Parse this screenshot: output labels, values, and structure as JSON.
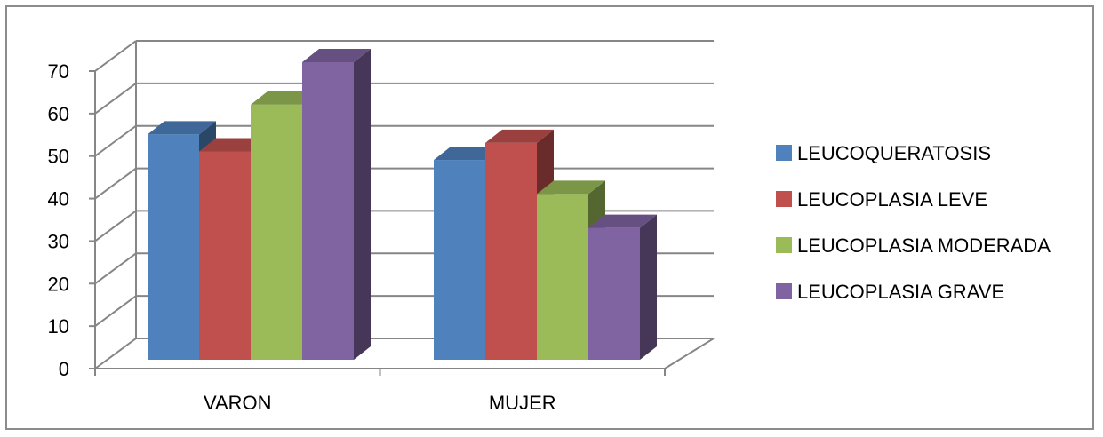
{
  "chart_data": {
    "type": "bar",
    "variant": "3d-clustered-column",
    "categories": [
      "VARON",
      "MUJER"
    ],
    "series": [
      {
        "name": "LEUCOQUERATOSIS",
        "values": [
          53,
          47
        ],
        "color": "#4f81bd"
      },
      {
        "name": "LEUCOPLASIA LEVE",
        "values": [
          49,
          51
        ],
        "color": "#c0504d"
      },
      {
        "name": "LEUCOPLASIA MODERADA",
        "values": [
          60,
          39
        ],
        "color": "#9bbb59"
      },
      {
        "name": "LEUCOPLASIA GRAVE",
        "values": [
          70,
          31
        ],
        "color": "#8064a2"
      }
    ],
    "ylim": [
      0,
      70
    ],
    "yticks": [
      0,
      10,
      20,
      30,
      40,
      50,
      60,
      70
    ],
    "grid": true,
    "legend_position": "right"
  }
}
